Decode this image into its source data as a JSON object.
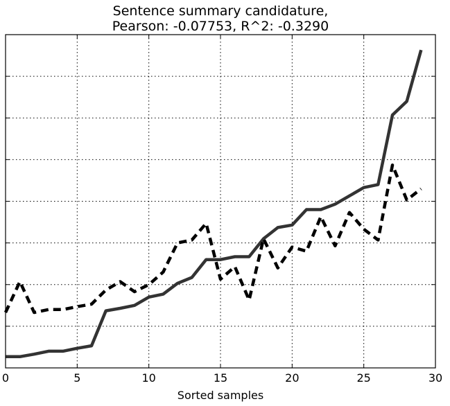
{
  "chart_data": {
    "type": "line",
    "title_line1": "Sentence summary candidature,",
    "title_line2": "Pearson: -0.07753, R^2: -0.3290",
    "xlabel": "Sorted samples",
    "ylabel": "",
    "xlim": [
      0,
      30
    ],
    "ylim": [
      0,
      8
    ],
    "x_ticks": [
      0,
      5,
      10,
      15,
      20,
      25,
      30
    ],
    "x_tick_labels": [
      "0",
      "5",
      "10",
      "15",
      "20",
      "25",
      "30"
    ],
    "y_ticks": [
      1,
      2,
      3,
      4,
      5,
      6,
      7
    ],
    "grid": true,
    "series": [
      {
        "style": "solid",
        "color": "#333333",
        "x": [
          0,
          1,
          2,
          3,
          4,
          5,
          6,
          7,
          8,
          9,
          10,
          11,
          12,
          13,
          14,
          15,
          16,
          17,
          18,
          19,
          20,
          21,
          22,
          23,
          24,
          25,
          26,
          27,
          28,
          29
        ],
        "values": [
          0.27,
          0.27,
          0.33,
          0.4,
          0.4,
          0.47,
          0.53,
          1.37,
          1.43,
          1.5,
          1.7,
          1.77,
          2.03,
          2.17,
          2.6,
          2.6,
          2.67,
          2.67,
          3.1,
          3.37,
          3.43,
          3.8,
          3.8,
          3.93,
          4.13,
          4.33,
          4.4,
          6.07,
          6.4,
          7.63
        ]
      },
      {
        "style": "dashed",
        "color": "#000000",
        "x": [
          0,
          1,
          2,
          3,
          4,
          5,
          6,
          7,
          8,
          9,
          10,
          11,
          12,
          13,
          14,
          15,
          16,
          17,
          18,
          19,
          20,
          21,
          22,
          23,
          24,
          25,
          26,
          27,
          28,
          29
        ],
        "values": [
          1.33,
          2.07,
          1.33,
          1.4,
          1.4,
          1.47,
          1.53,
          1.87,
          2.07,
          1.83,
          2.0,
          2.3,
          3.0,
          3.07,
          3.47,
          2.13,
          2.43,
          1.63,
          3.1,
          2.4,
          2.9,
          2.8,
          3.63,
          2.93,
          3.73,
          3.33,
          3.07,
          4.87,
          4.03,
          4.3
        ]
      }
    ]
  }
}
